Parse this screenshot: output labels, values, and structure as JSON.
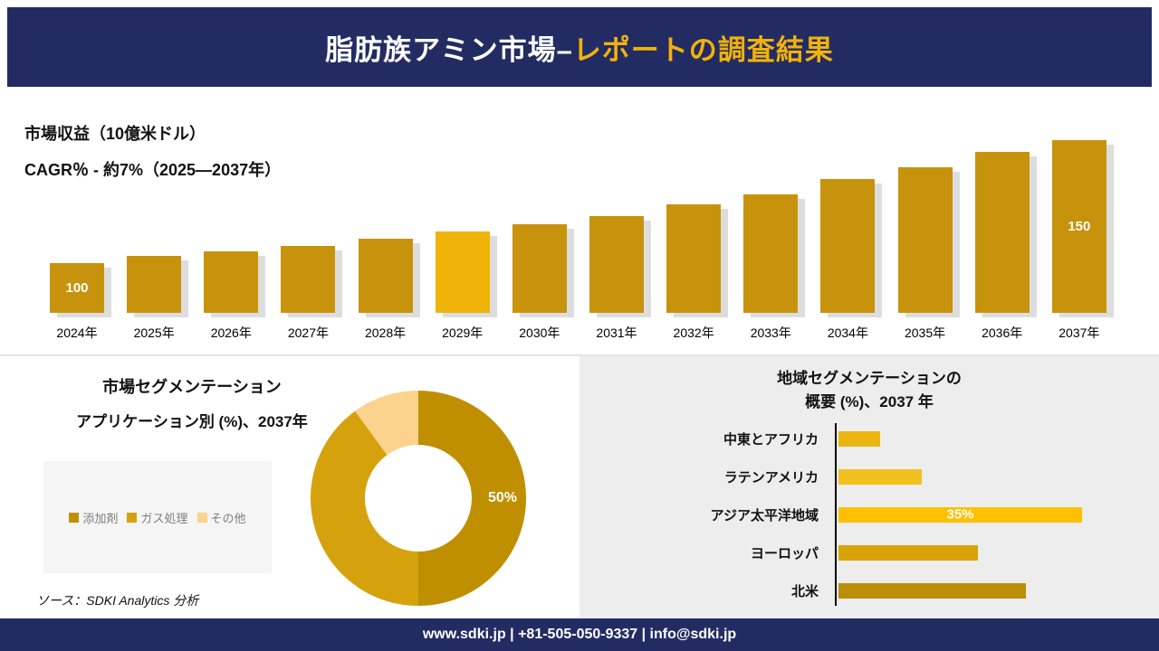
{
  "header": {
    "title_white": "脂肪族アミン市場–",
    "title_gold": "レポートの調査結果"
  },
  "colors": {
    "navy": "#232C62",
    "gold_accent": "#F2B20A",
    "panel_gray": "#EDEDED"
  },
  "source": {
    "text": "ソース：SDKI Analytics 分析"
  },
  "footer": {
    "text": "www.sdki.jp | +81-505-050-9337 | info@sdki.jp"
  },
  "chart_data": [
    {
      "id": "revenue",
      "type": "bar",
      "title": "市場収益（10億米ドル）",
      "subtitle": "CAGR％ - 約7%（2025―2037年）",
      "categories": [
        "2024年",
        "2025年",
        "2026年",
        "2027年",
        "2028年",
        "2029年",
        "2030年",
        "2031年",
        "2032年",
        "2033年",
        "2034年",
        "2035年",
        "2036年",
        "2037年"
      ],
      "values": [
        100,
        103,
        105,
        107,
        110,
        113,
        116,
        119,
        124,
        128,
        134,
        139,
        145,
        150
      ],
      "bar_labels": {
        "0": "100",
        "13": "150"
      },
      "ylim": [
        80,
        155
      ],
      "bar_color": "#C8930C",
      "highlight": {
        "index": 5,
        "color": "#EFB309"
      },
      "shadow_color": "#DDDDDD",
      "grid": false
    },
    {
      "id": "app-segmentation",
      "type": "pie",
      "donut": true,
      "title": "市場セグメンテーション",
      "subtitle": "アプリケーション別 (%)、2037年",
      "labels": [
        "添加剤",
        "ガス処理",
        "その他"
      ],
      "values": [
        50,
        40,
        10
      ],
      "colors": [
        "#BF8F00",
        "#D5A10D",
        "#FBD38D"
      ],
      "data_label": "50%",
      "legend_position": "left"
    },
    {
      "id": "regional",
      "type": "bar",
      "orientation": "horizontal",
      "title": "地域セグメンテーションの",
      "subtitle": "概要 (%)、2037 年",
      "categories": [
        "中東とアフリカ",
        "ラテンアメリカ",
        "アジア太平洋地域",
        "ヨーロッパ",
        "北米"
      ],
      "values": [
        6,
        12,
        35,
        20,
        27
      ],
      "colors": [
        "#EDB512",
        "#F2C01E",
        "#FFC000",
        "#D9A40A",
        "#BC8D07"
      ],
      "xlim": [
        0,
        38
      ],
      "bar_label": {
        "index": 2,
        "text": "35%"
      },
      "grid": false
    }
  ]
}
